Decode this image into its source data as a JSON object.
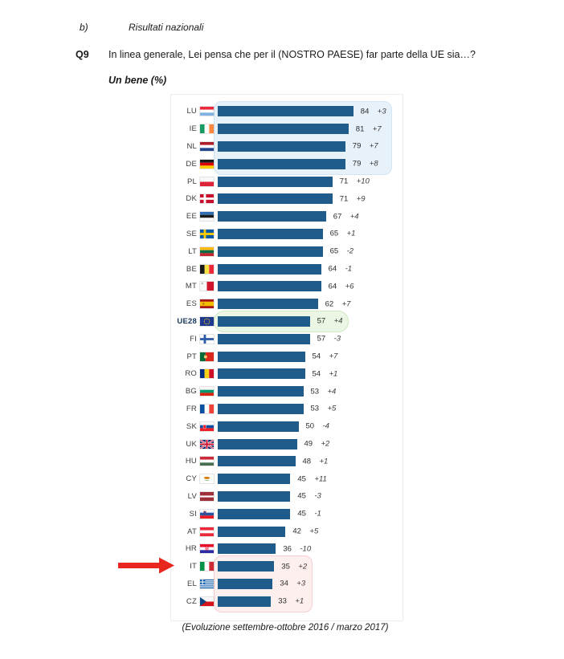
{
  "page": {
    "section_label": "b)",
    "section_title": "Risultati nazionali",
    "question_code": "Q9",
    "question_text": "In linea generale, Lei pensa che per il (NOSTRO PAESE) far parte della UE sia…?",
    "chart_title": "Un bene (%)",
    "footnote": "(Evoluzione settembre-ottobre 2016 / marzo 2017)"
  },
  "chart_data": {
    "type": "bar",
    "orientation": "horizontal",
    "title": "Un bene (%)",
    "unit": "%",
    "xlim": [
      0,
      100
    ],
    "bar_color": "#1f5c8c",
    "grid": false,
    "legend": false,
    "rows": [
      {
        "code": "LU",
        "value": 84,
        "change": "+3"
      },
      {
        "code": "IE",
        "value": 81,
        "change": "+7"
      },
      {
        "code": "NL",
        "value": 79,
        "change": "+7"
      },
      {
        "code": "DE",
        "value": 79,
        "change": "+8"
      },
      {
        "code": "PL",
        "value": 71,
        "change": "+10"
      },
      {
        "code": "DK",
        "value": 71,
        "change": "+9"
      },
      {
        "code": "EE",
        "value": 67,
        "change": "+4"
      },
      {
        "code": "SE",
        "value": 65,
        "change": "+1"
      },
      {
        "code": "LT",
        "value": 65,
        "change": "-2"
      },
      {
        "code": "BE",
        "value": 64,
        "change": "-1"
      },
      {
        "code": "MT",
        "value": 64,
        "change": "+6"
      },
      {
        "code": "ES",
        "value": 62,
        "change": "+7"
      },
      {
        "code": "UE28",
        "value": 57,
        "change": "+4"
      },
      {
        "code": "FI",
        "value": 57,
        "change": "-3"
      },
      {
        "code": "PT",
        "value": 54,
        "change": "+7"
      },
      {
        "code": "RO",
        "value": 54,
        "change": "+1"
      },
      {
        "code": "BG",
        "value": 53,
        "change": "+4"
      },
      {
        "code": "FR",
        "value": 53,
        "change": "+5"
      },
      {
        "code": "SK",
        "value": 50,
        "change": "-4"
      },
      {
        "code": "UK",
        "value": 49,
        "change": "+2"
      },
      {
        "code": "HU",
        "value": 48,
        "change": "+1"
      },
      {
        "code": "CY",
        "value": 45,
        "change": "+11"
      },
      {
        "code": "LV",
        "value": 45,
        "change": "-3"
      },
      {
        "code": "SI",
        "value": 45,
        "change": "-1"
      },
      {
        "code": "AT",
        "value": 42,
        "change": "+5"
      },
      {
        "code": "HR",
        "value": 36,
        "change": "-10"
      },
      {
        "code": "IT",
        "value": 35,
        "change": "+2"
      },
      {
        "code": "EL",
        "value": 34,
        "change": "+3"
      },
      {
        "code": "CZ",
        "value": 33,
        "change": "+1"
      }
    ],
    "highlights": [
      {
        "name": "top-group",
        "codes": [
          "LU",
          "IE",
          "NL",
          "DE"
        ],
        "fill": "#e7f1f9",
        "border": "#d4e5f3"
      },
      {
        "name": "eu-average",
        "codes": [
          "UE28"
        ],
        "fill": "#ecf6e4",
        "border": "#d0e8c3"
      },
      {
        "name": "bottom-group",
        "codes": [
          "IT",
          "EL",
          "CZ"
        ],
        "fill": "#fdefee",
        "border": "#f6cfd2"
      }
    ],
    "arrow": {
      "points_to": "IT",
      "color": "#e9261d"
    }
  }
}
